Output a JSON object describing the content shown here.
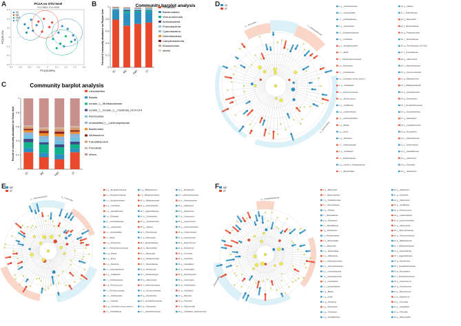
{
  "panel_labels": {
    "A": "A",
    "B": "B",
    "C": "C",
    "D": "D",
    "E": "E",
    "F": "F"
  },
  "colors": {
    "red": "#e8492c",
    "blue": "#2a8fc1",
    "teal": "#13b08c",
    "yellow": "#f1e64a",
    "orange_light": "#f6b49a",
    "blue_light": "#bfe3f3",
    "node_yellow": "#f0ea4f"
  },
  "chart_data": [
    {
      "id": "A",
      "type": "scatter",
      "title": "PCoA on OTU level",
      "subtitle": "R=0.3993, P=0.0008",
      "xlabel": "PC1(24.65%)",
      "ylabel": "PC2(10.4%)",
      "xlim": [
        -0.4,
        0.4
      ],
      "ylim": [
        -0.3,
        0.3
      ],
      "xticks": [
        "-0.4",
        "-0.3",
        "-0.2",
        "-0.1",
        "0",
        "0.1",
        "0.2",
        "0.3",
        "0.4"
      ],
      "yticks": [
        "-0.3",
        "-0.2",
        "-0.1",
        "0",
        "0.1",
        "0.2",
        "0.3"
      ],
      "groups": [
        {
          "name": "2C",
          "color": "#2a8fc1",
          "points": [
            [
              -0.25,
              0.14
            ],
            [
              -0.21,
              0.1
            ],
            [
              -0.18,
              0.19
            ],
            [
              -0.12,
              0.13
            ],
            [
              -0.16,
              0.07
            ],
            [
              -0.23,
              0.05
            ]
          ]
        },
        {
          "name": "MZ",
          "color": "#e8492c",
          "points": [
            [
              -0.1,
              0.17
            ],
            [
              -0.04,
              0.2
            ],
            [
              0.02,
              0.11
            ],
            [
              -0.06,
              0.06
            ],
            [
              0.05,
              0.16
            ]
          ]
        },
        {
          "name": "FMT",
          "color": "#13b08c",
          "points": [
            [
              0.06,
              -0.02
            ],
            [
              0.14,
              -0.07
            ],
            [
              0.2,
              0.01
            ],
            [
              0.1,
              -0.12
            ],
            [
              0.26,
              -0.05
            ],
            [
              0.18,
              -0.1
            ]
          ]
        },
        {
          "name": "2T",
          "color": "#3f8fc0",
          "points": [
            [
              0.12,
              0.05
            ],
            [
              0.22,
              0.09
            ],
            [
              0.28,
              0.02
            ],
            [
              0.16,
              0.12
            ],
            [
              0.3,
              -0.03
            ]
          ]
        }
      ]
    },
    {
      "id": "B",
      "type": "bar",
      "title": "Community barplot analysis",
      "ylabel": "Percent of community abundance on Phylum level",
      "categories": [
        "2C",
        "MZ",
        "FMT",
        "2T"
      ],
      "ylim": [
        0,
        1
      ],
      "yticks": [
        "0",
        "0.2",
        "0.4",
        "0.6",
        "0.8",
        "1"
      ],
      "series": [
        {
          "name": "Firmicutes",
          "color": "#e8492c",
          "values": [
            0.79,
            0.69,
            0.72,
            0.74
          ]
        },
        {
          "name": "Bacteroidetes",
          "color": "#2a8fc1",
          "values": [
            0.15,
            0.21,
            0.19,
            0.18
          ]
        },
        {
          "name": "Verrucomicrobia",
          "color": "#13b08c",
          "values": [
            0.005,
            0.03,
            0.02,
            0.02
          ]
        },
        {
          "name": "Actinobacteria",
          "color": "#3c4a87",
          "values": [
            0.01,
            0.02,
            0.015,
            0.01
          ]
        },
        {
          "name": "Proteobacteria",
          "color": "#7ecbe5",
          "values": [
            0.02,
            0.02,
            0.02,
            0.02
          ]
        },
        {
          "name": "Cyanobacteria",
          "color": "#8fb3d9",
          "values": [
            0.01,
            0.01,
            0.01,
            0.01
          ]
        },
        {
          "name": "Deferribacteres",
          "color": "#f28c28",
          "values": [
            0.005,
            0.005,
            0.005,
            0.005
          ]
        },
        {
          "name": "Campilobacterota",
          "color": "#8b1e1e",
          "values": [
            0.005,
            0.005,
            0.005,
            0.005
          ]
        },
        {
          "name": "Elusimicrobia",
          "color": "#c7a58a",
          "values": [
            0.003,
            0.003,
            0.003,
            0.003
          ]
        },
        {
          "name": "others",
          "color": "#e7c9b5",
          "values": [
            0.002,
            0.002,
            0.002,
            0.002
          ]
        }
      ]
    },
    {
      "id": "C",
      "type": "bar",
      "title": "Community barplot analysis",
      "ylabel": "Percent of community abundance on Genus level",
      "categories": [
        "2C",
        "MZ",
        "FMT",
        "2T"
      ],
      "ylim": [
        0,
        1
      ],
      "yticks": [
        "0",
        "0.2",
        "0.4",
        "0.6",
        "0.8",
        "1"
      ],
      "series": [
        {
          "name": "Lactobacillus",
          "color": "#e8492c",
          "values": [
            0.24,
            0.17,
            0.14,
            0.24
          ]
        },
        {
          "name": "Blautia",
          "color": "#2a8fc1",
          "values": [
            0.06,
            0.06,
            0.07,
            0.05
          ]
        },
        {
          "name": "norank_f__Muribaculaceae",
          "color": "#13b08c",
          "values": [
            0.08,
            0.12,
            0.1,
            0.06
          ]
        },
        {
          "name": "norank_f__norank_o__Clostridia_UCG-014",
          "color": "#3c4a87",
          "values": [
            0.05,
            0.03,
            0.04,
            0.04
          ]
        },
        {
          "name": "Romboutsia",
          "color": "#6fc2e2",
          "values": [
            0.05,
            0.04,
            0.05,
            0.06
          ]
        },
        {
          "name": "unclassified_f__Lachnospiraceae",
          "color": "#8fb3d9",
          "values": [
            0.04,
            0.05,
            0.06,
            0.05
          ]
        },
        {
          "name": "Bacteroides",
          "color": "#f28c28",
          "values": [
            0.03,
            0.04,
            0.04,
            0.03
          ]
        },
        {
          "name": "Allobaculum",
          "color": "#8b1e1e",
          "values": [
            0.02,
            0.03,
            0.03,
            0.02
          ]
        },
        {
          "name": "Faecalibaculum",
          "color": "#d69a6a",
          "values": [
            0.03,
            0.03,
            0.04,
            0.04
          ]
        },
        {
          "name": "Prevotella",
          "color": "#c9b5a5",
          "values": [
            0.02,
            0.02,
            0.02,
            0.02
          ]
        },
        {
          "name": "others",
          "color": "#c98f8a",
          "values": [
            0.38,
            0.41,
            0.41,
            0.39
          ]
        }
      ]
    },
    {
      "id": "D",
      "type": "cladogram",
      "legend": [
        {
          "name": "2C",
          "color": "#2a8fc1"
        },
        {
          "name": "2T",
          "color": "#e8492c"
        }
      ],
      "arc_labels": [
        "p__Firmicutes",
        "f__Lachnospiraceae",
        "p__Bacteroidota"
      ],
      "taxa_left": [
        "a: g__Lachnospiraceae",
        "b: o__Lactobacillales",
        "c: f__Lactobacillaceae",
        "d: g__Lactobacillus",
        "e: f__Erysipelotrichaceae",
        "f: g__Turicibacter",
        "g: o__Erysipelotrichales",
        "h: c__Bacilli",
        "i: f__Peptostreptococcaceae",
        "j: g__Romboutsia",
        "k: f__Clostridiaceae",
        "l: g__Clostridium_sensu_stricto_1",
        "m: o__Clostridiales",
        "n: f__Ruminococcaceae",
        "o: g__Ruminococcus",
        "p: g__Oscillibacter",
        "q: g__Colidextribacter",
        "r: g__Lachnoclostridium",
        "s: g__Blautia",
        "t: g__Dorea",
        "u: g__Roseburia",
        "v: f__Oscillospiraceae",
        "w: g__Oscillospira",
        "x: f__Muribaculaceae",
        "y: g__norank_f__Muribaculaceae",
        "z: o__Bacteroidales"
      ],
      "taxa_right": [
        "a0: g__Alistipes",
        "a1: f__Rikenellaceae",
        "a2: g__Bacteroides",
        "a3: f__Bacteroidaceae",
        "a4: g__Parabacteroides",
        "a5: f__Tannerellaceae",
        "a6: g__Prevotellaceae_UCG-001",
        "a7: f__Prevotellaceae",
        "a8: g__Akkermansia",
        "a9: f__Akkermansiaceae",
        "b0: p__Verrucomicrobiota",
        "b1: g__Bifidobacterium",
        "b2: f__Bifidobacteriaceae",
        "b3: p__Actinobacteriota",
        "b4: g__Desulfovibrio",
        "b5: f__Desulfovibrionaceae",
        "b6: p__Desulfobacterota",
        "b7: g__Helicobacter",
        "b8: p__Campilobacterota",
        "b9: g__Mucispirillum",
        "c0: p__Deferribacterota",
        "c1: g__Enterorhabdus",
        "c2: g__Faecalibaculum",
        "c3: g__Allobaculum",
        "c4: g__Dubosiella",
        "c5: g__Ileibacterium"
      ]
    },
    {
      "id": "E",
      "type": "cladogram",
      "legend": [
        {
          "name": "MZ",
          "color": "#2a8fc1"
        },
        {
          "name": "2T",
          "color": "#e8492c"
        }
      ],
      "arc_labels": [
        "p__Actinobacteriota",
        "p__Firmicutes"
      ],
      "taxa_left": [
        "a: g__Erysipelotrichaceae",
        "b: f__Erysipelotrichaceae",
        "c: o__Erysipelotrichales",
        "d: g__Turicibacter",
        "e: g__Faecalibaculum",
        "f: g__Dubosiella",
        "g: f__Lactobacillaceae",
        "h: g__Lactobacillus",
        "i: o__Lactobacillales",
        "j: c__Bacilli",
        "k: g__Romboutsia",
        "l: f__Peptostreptococcaceae",
        "m: g__Blautia",
        "n: g__Dorea",
        "o: g__Roseburia",
        "p: f__Lachnospiraceae",
        "q: g__Oscillibacter",
        "r: f__Oscillospiraceae",
        "s: g__Ruminococcus",
        "t: f__Ruminococcaceae",
        "u: o__Oscillospirales",
        "v: c__Clostridia",
        "w: g__Clostridium_sensu_stricto_1",
        "x: f__Clostridiaceae"
      ],
      "taxa_mid": [
        "y: g__Bifidobacterium",
        "z: f__Bifidobacteriaceae",
        "a0: o__Bifidobacteriales",
        "a1: g__Enterorhabdus",
        "a2: f__Eggerthellaceae",
        "a3: c__Coriobacteriia",
        "a4: p__Actinobacteriota",
        "a5: g__Alistipes",
        "a6: f__Rikenellaceae",
        "a7: g__Bacteroides",
        "a8: f__Bacteroidaceae",
        "a9: o__Bacteroidales",
        "b0: c__Bacteroidia",
        "b1: g__Parabacteroides",
        "b2: f__Tannerellaceae",
        "b3: g__Muribaculum",
        "b4: f__Muribaculaceae",
        "b5: g__Akkermansia",
        "b6: f__Akkermansiaceae",
        "b7: p__Verrucomicrobiota",
        "b8: g__Desulfovibrio",
        "b9: f__Desulfovibrionaceae",
        "c0: g__Helicobacter",
        "c1: f__Helicobacteraceae"
      ],
      "taxa_right": [
        "c2: g__Mucispirillum",
        "c3: f__Deferribacteraceae",
        "c4: p__Deferribacterota",
        "c5: g__Allobaculum",
        "c6: g__Ileibacterium",
        "c7: g__Coprococcus",
        "c8: g__Anaerotruncus",
        "c9: g__Lachnoclostridium",
        "d0: g__Colidextribacter",
        "d1: g__Intestinimonas",
        "d2: g__Butyricicoccus",
        "d3: g__Eubacterium",
        "d4: g__Tuzzerella",
        "d5: g__Harryflintia",
        "d6: g__Acetatifactor",
        "d7: g__Anaerostipes",
        "d8: g__Marvinbryantia",
        "d9: g__Lachnospira",
        "e0: g__Shuttleworthia",
        "e1: g__Odoribacter",
        "e2: g__Rikenella",
        "e3: g__Prevotella",
        "e4: g__Alloprevotella",
        "e5: g__Candidatus_Saccharimonas"
      ]
    },
    {
      "id": "F",
      "type": "cladogram",
      "legend": [
        {
          "name": "MZ",
          "color": "#2a8fc1"
        },
        {
          "name": "2T",
          "color": "#e8492c"
        }
      ],
      "arc_labels": [
        "p__Campilobacterota",
        "p__Bacteroidota"
      ],
      "taxa_left": [
        "a: g__Bacteroides",
        "b: f__Bacteroidaceae",
        "c: g__Parabacteroides",
        "d: f__Tannerellaceae",
        "e: g__Alistipes",
        "f: f__Rikenellaceae",
        "g: g__Odoribacter",
        "h: f__Marinifilaceae",
        "i: g__Muribaculum",
        "j: f__Muribaculaceae",
        "k: o__Bacteroidales",
        "l: c__Bacteroidia",
        "m: p__Bacteroidota",
        "n: g__Helicobacter",
        "o: f__Helicobacteraceae",
        "p: o__Campylobacterales",
        "q: c__Campylobacteria",
        "r: p__Campilobacterota",
        "s: g__Lactobacillus",
        "t: f__Lactobacillaceae",
        "u: g__Blautia",
        "v: g__Dorea",
        "w: g__Roseburia",
        "x: g__Romboutsia",
        "y: g__Turicibacter",
        "z: g__Faecalibaculum"
      ],
      "taxa_right": [
        "a0: g__Allobaculum",
        "a1: g__Dubosiella",
        "a2: g__Ileibacterium",
        "a3: g__Oscillibacter",
        "a4: g__Ruminococcus",
        "a5: g__Colidextribacter",
        "a6: g__Lachnoclostridium",
        "a7: g__Akkermansia",
        "a8: f__Akkermansiaceae",
        "a9: p__Verrucomicrobiota",
        "b0: g__Bifidobacterium",
        "b1: f__Bifidobacteriaceae",
        "b2: g__Enterorhabdus",
        "b3: f__Eggerthellaceae",
        "b4: g__Desulfovibrio",
        "b5: f__Desulfovibrionaceae",
        "b6: g__Mucispirillum",
        "b7: f__Deferribacteraceae",
        "b8: g__Anaerotruncus",
        "b9: g__Intestinimonas",
        "c0: g__Butyricicoccus",
        "c1: g__Eubacterium",
        "c2: g__Tuzzerella",
        "c3: g__Acetatifactor",
        "c4: g__Prevotella",
        "c5: g__Alloprevotella"
      ]
    }
  ]
}
